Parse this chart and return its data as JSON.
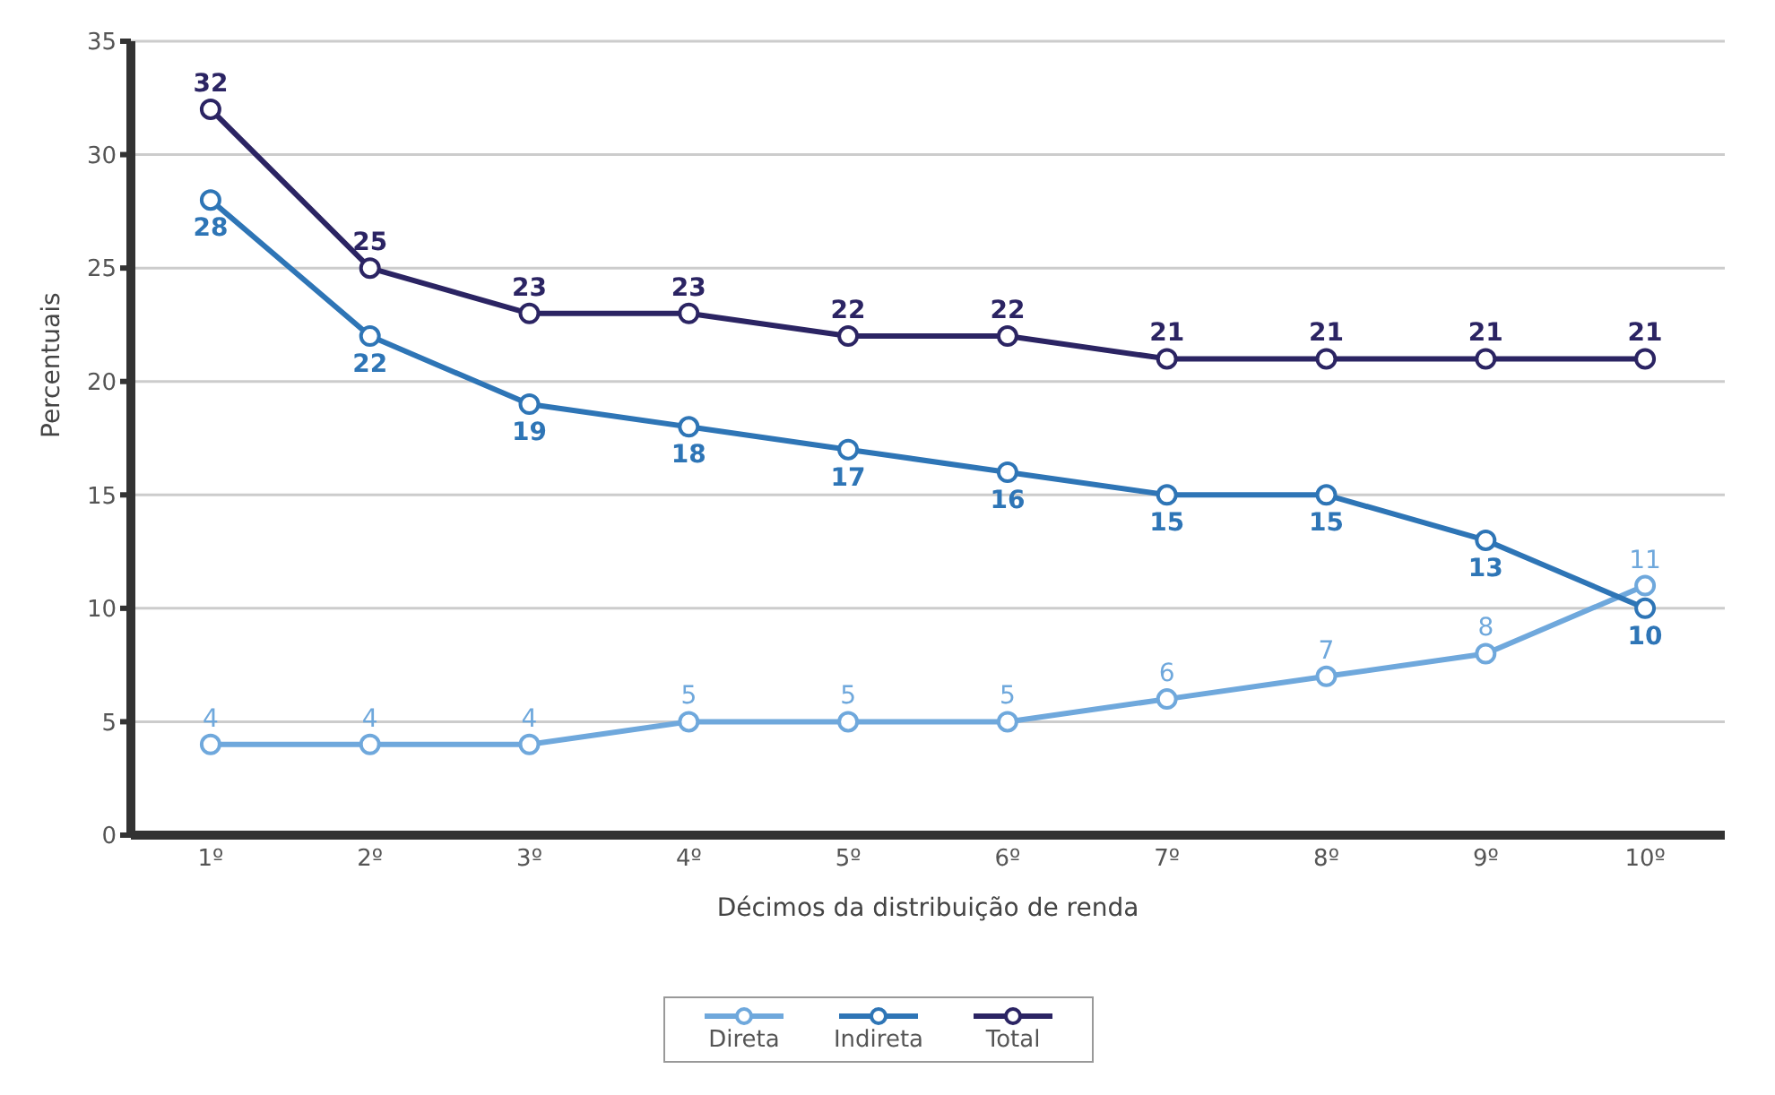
{
  "chart_data": {
    "type": "line",
    "xlabel": "Décimos da distribuição de renda",
    "ylabel": "Percentuais",
    "categories": [
      "1º",
      "2º",
      "3º",
      "4º",
      "5º",
      "6º",
      "7º",
      "8º",
      "9º",
      "10º"
    ],
    "series": [
      {
        "name": "Direta",
        "color": "#6fa8dc",
        "values": [
          4,
          4,
          4,
          5,
          5,
          5,
          6,
          7,
          8,
          11
        ]
      },
      {
        "name": "Indireta",
        "color": "#2e75b6",
        "values": [
          28,
          22,
          19,
          18,
          17,
          16,
          15,
          15,
          13,
          10
        ]
      },
      {
        "name": "Total",
        "color": "#2b2463",
        "values": [
          32,
          25,
          23,
          23,
          22,
          22,
          21,
          21,
          21,
          21
        ]
      }
    ],
    "ylim": [
      0,
      35
    ],
    "yticks": [
      0,
      5,
      10,
      15,
      20,
      25,
      30,
      35
    ],
    "grid": "y",
    "legend": "bottom",
    "marker": "circle",
    "line_style": "solid",
    "data_labels": true
  }
}
